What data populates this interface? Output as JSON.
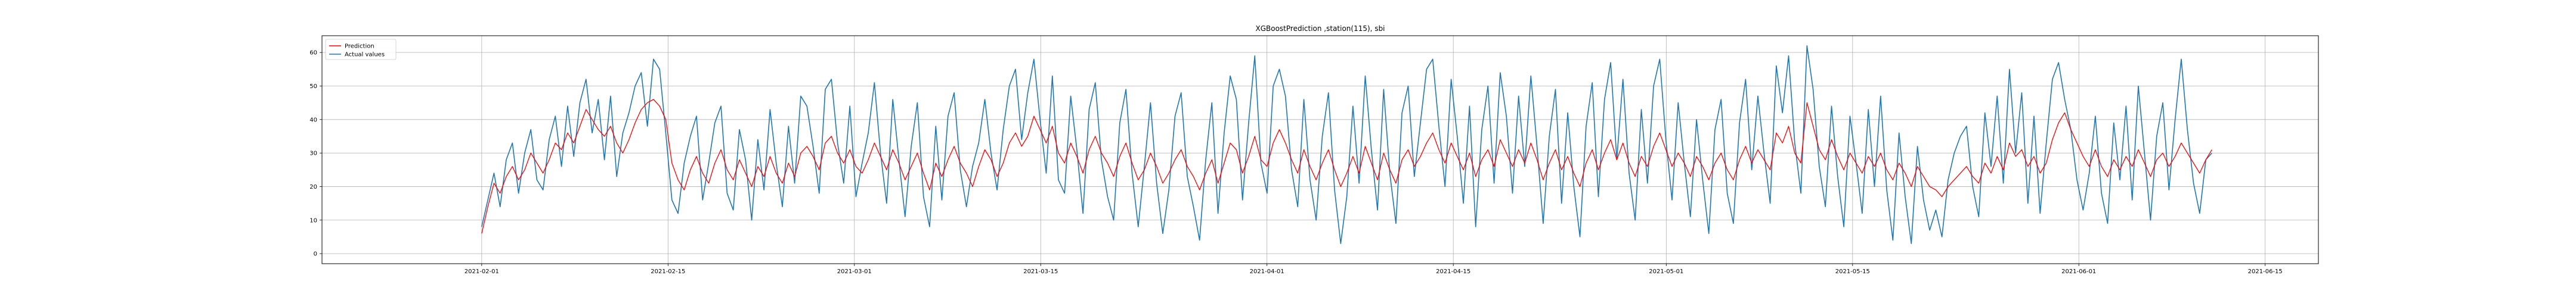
{
  "chart_data": {
    "type": "line",
    "title": "XGBoostPrediction ,station(115), sbi",
    "xlabel": "",
    "ylabel": "",
    "xlim": [
      "2021-01-20",
      "2021-06-19"
    ],
    "ylim": [
      -3,
      65
    ],
    "x_ticks": [
      "2021-02-01",
      "2021-02-15",
      "2021-03-01",
      "2021-03-15",
      "2021-04-01",
      "2021-04-15",
      "2021-05-01",
      "2021-05-15",
      "2021-06-01",
      "2021-06-15"
    ],
    "y_ticks": [
      0,
      10,
      20,
      30,
      40,
      50,
      60
    ],
    "grid": true,
    "legend_position": "top-left",
    "x_range": [
      "2021-02-01",
      "2021-06-11"
    ],
    "series": [
      {
        "name": "Prediction",
        "color": "#ff0000",
        "values": [
          6,
          14,
          21,
          18,
          23,
          26,
          22,
          25,
          30,
          27,
          24,
          28,
          33,
          31,
          36,
          33,
          38,
          43,
          40,
          37,
          35,
          38,
          33,
          30,
          34,
          39,
          43,
          45,
          46,
          44,
          40,
          27,
          22,
          19,
          25,
          29,
          24,
          21,
          27,
          31,
          25,
          22,
          28,
          24,
          20,
          26,
          23,
          29,
          24,
          21,
          27,
          23,
          30,
          32,
          29,
          25,
          33,
          35,
          30,
          27,
          31,
          26,
          24,
          28,
          33,
          29,
          25,
          31,
          27,
          22,
          26,
          30,
          24,
          19,
          27,
          23,
          28,
          32,
          27,
          24,
          20,
          26,
          31,
          28,
          23,
          27,
          33,
          36,
          32,
          35,
          41,
          37,
          33,
          38,
          30,
          27,
          33,
          29,
          24,
          31,
          35,
          30,
          27,
          23,
          29,
          33,
          27,
          22,
          25,
          30,
          26,
          21,
          24,
          28,
          31,
          26,
          23,
          19,
          24,
          28,
          21,
          27,
          33,
          31,
          24,
          29,
          35,
          28,
          26,
          33,
          37,
          33,
          28,
          24,
          31,
          26,
          22,
          27,
          31,
          25,
          20,
          24,
          29,
          24,
          32,
          27,
          22,
          30,
          25,
          21,
          28,
          31,
          26,
          29,
          33,
          36,
          31,
          27,
          33,
          29,
          25,
          30,
          23,
          28,
          31,
          26,
          34,
          30,
          26,
          31,
          27,
          33,
          28,
          22,
          27,
          31,
          25,
          29,
          24,
          20,
          27,
          31,
          25,
          30,
          34,
          28,
          33,
          27,
          23,
          29,
          26,
          32,
          36,
          31,
          26,
          30,
          27,
          23,
          29,
          26,
          22,
          27,
          30,
          25,
          22,
          28,
          32,
          27,
          31,
          28,
          25,
          36,
          33,
          38,
          30,
          27,
          45,
          38,
          31,
          28,
          34,
          29,
          25,
          30,
          27,
          24,
          29,
          26,
          30,
          25,
          22,
          27,
          24,
          20,
          26,
          23,
          20,
          19,
          17,
          20,
          22,
          24,
          26,
          23,
          21,
          27,
          24,
          29,
          25,
          33,
          29,
          31,
          26,
          29,
          24,
          27,
          34,
          39,
          42,
          37,
          33,
          29,
          26,
          31,
          26,
          23,
          28,
          25,
          29,
          26,
          31,
          27,
          23,
          28,
          30,
          26,
          29,
          33,
          30,
          27,
          24,
          28,
          31
        ]
      },
      {
        "name": "Actual values",
        "color": "#1f77b4",
        "values": [
          8,
          16,
          24,
          14,
          28,
          33,
          18,
          30,
          37,
          22,
          19,
          34,
          41,
          26,
          44,
          29,
          45,
          52,
          36,
          46,
          28,
          47,
          23,
          36,
          42,
          50,
          54,
          38,
          58,
          55,
          36,
          16,
          12,
          27,
          35,
          41,
          16,
          27,
          39,
          44,
          18,
          13,
          37,
          28,
          10,
          34,
          19,
          43,
          27,
          14,
          38,
          21,
          47,
          44,
          32,
          18,
          49,
          52,
          33,
          21,
          44,
          17,
          27,
          36,
          51,
          30,
          15,
          46,
          28,
          11,
          32,
          45,
          17,
          8,
          38,
          16,
          41,
          48,
          25,
          14,
          26,
          33,
          46,
          30,
          19,
          37,
          50,
          55,
          34,
          48,
          58,
          40,
          24,
          53,
          22,
          18,
          47,
          31,
          12,
          43,
          51,
          28,
          17,
          10,
          39,
          49,
          24,
          8,
          26,
          45,
          21,
          6,
          19,
          41,
          48,
          23,
          14,
          4,
          28,
          45,
          12,
          36,
          53,
          46,
          16,
          39,
          59,
          27,
          18,
          50,
          55,
          47,
          25,
          14,
          46,
          22,
          10,
          35,
          48,
          19,
          3,
          17,
          44,
          21,
          53,
          31,
          13,
          49,
          24,
          9,
          42,
          50,
          23,
          39,
          55,
          58,
          38,
          20,
          52,
          35,
          15,
          44,
          8,
          37,
          50,
          21,
          54,
          41,
          18,
          47,
          26,
          53,
          32,
          9,
          35,
          49,
          15,
          42,
          20,
          5,
          38,
          51,
          17,
          46,
          57,
          28,
          52,
          24,
          10,
          43,
          21,
          50,
          58,
          34,
          16,
          45,
          27,
          11,
          40,
          22,
          6,
          37,
          46,
          18,
          9,
          39,
          52,
          25,
          47,
          30,
          15,
          56,
          42,
          59,
          33,
          18,
          62,
          49,
          26,
          14,
          44,
          23,
          8,
          41,
          27,
          12,
          43,
          20,
          47,
          19,
          4,
          36,
          17,
          3,
          32,
          16,
          7,
          13,
          5,
          22,
          30,
          35,
          38,
          20,
          11,
          42,
          26,
          47,
          21,
          55,
          30,
          48,
          15,
          41,
          12,
          33,
          52,
          57,
          46,
          37,
          22,
          13,
          24,
          41,
          18,
          9,
          39,
          22,
          44,
          16,
          50,
          30,
          10,
          35,
          45,
          19,
          40,
          58,
          37,
          21,
          12,
          28,
          30
        ]
      }
    ]
  }
}
